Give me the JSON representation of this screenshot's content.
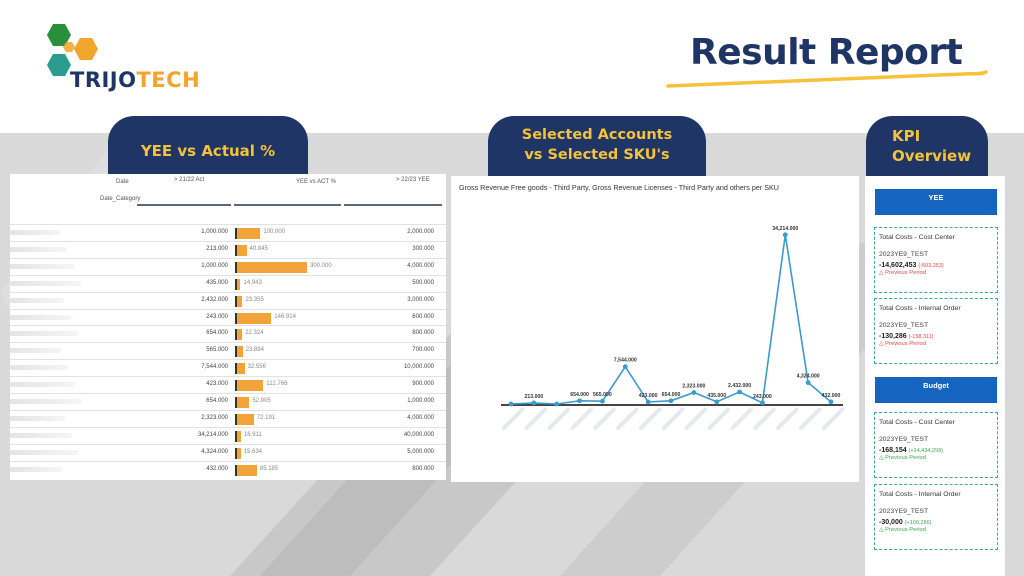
{
  "brand": {
    "name_part1": "TRIJO",
    "name_part2": "TECH",
    "colors": {
      "navy": "#1e3565",
      "orange": "#f2a52c",
      "green": "#2a8f3a",
      "teal": "#2a9d8f"
    }
  },
  "header": {
    "title": "Result Report"
  },
  "tabs": [
    {
      "lines": [
        "YEE vs Actual %"
      ]
    },
    {
      "lines": [
        "Selected Accounts",
        "vs Selected SKU's"
      ]
    },
    {
      "lines": [
        "KPI",
        "Overview"
      ]
    }
  ],
  "table": {
    "headers": {
      "date": "Date",
      "date_category": "Date_Category",
      "act": "> 21/22 Act",
      "yee_vs_act": "YEE vs ACT %",
      "yee": "> 22/23 YEE"
    },
    "rows": [
      {
        "label": "blurred",
        "act": "1,000.000",
        "pct_label": "100.000",
        "pct": 100,
        "yee": "2,000.000"
      },
      {
        "label": "blurred",
        "act": "213.000",
        "pct_label": "40.845",
        "pct": 40.845,
        "yee": "300.000"
      },
      {
        "label": "blurred",
        "act": "1,000.000",
        "pct_label": "300.000",
        "pct": 300,
        "yee": "4,000.000"
      },
      {
        "label": "blurred",
        "act": "435.000",
        "pct_label": "14.943",
        "pct": 14.943,
        "yee": "500.000"
      },
      {
        "label": "blurred",
        "act": "2,432.000",
        "pct_label": "23.355",
        "pct": 23.355,
        "yee": "3,000.000"
      },
      {
        "label": "blurred",
        "act": "243.000",
        "pct_label": "146.914",
        "pct": 146.914,
        "yee": "600.000"
      },
      {
        "label": "blurred",
        "act": "654.000",
        "pct_label": "22.324",
        "pct": 22.324,
        "yee": "800.000"
      },
      {
        "label": "blurred",
        "act": "565.000",
        "pct_label": "23.894",
        "pct": 23.894,
        "yee": "700.000"
      },
      {
        "label": "blurred",
        "act": "7,544.000",
        "pct_label": "32.556",
        "pct": 32.556,
        "yee": "10,000.000"
      },
      {
        "label": "blurred",
        "act": "423.000",
        "pct_label": "112.766",
        "pct": 112.766,
        "yee": "900.000"
      },
      {
        "label": "blurred",
        "act": "654.000",
        "pct_label": "52.905",
        "pct": 52.905,
        "yee": "1,000.000"
      },
      {
        "label": "blurred",
        "act": "2,323.000",
        "pct_label": "72.191",
        "pct": 72.191,
        "yee": "4,000.000"
      },
      {
        "label": "blurred",
        "act": "34,214.000",
        "pct_label": "16.911",
        "pct": 16.911,
        "yee": "40,000.000"
      },
      {
        "label": "blurred",
        "act": "4,324.000",
        "pct_label": "15.634",
        "pct": 15.634,
        "yee": "5,000.000"
      },
      {
        "label": "blurred",
        "act": "432.000",
        "pct_label": "85.185",
        "pct": 85.185,
        "yee": "800.000"
      }
    ]
  },
  "chart_data": {
    "type": "line",
    "title": "Gross Revenue Free goods - Third Party, Gross Revenue Licenses - Third Party and others per SKU",
    "xlabel": "",
    "ylabel": "",
    "color": "#3a9ccc",
    "points": [
      {
        "v": 0,
        "label": ""
      },
      {
        "v": 213,
        "label": "213.000"
      },
      {
        "v": 0,
        "label": ""
      },
      {
        "v": 654,
        "label": "654.000"
      },
      {
        "v": 565,
        "label": "565.000"
      },
      {
        "v": 7544,
        "label": "7,544.000"
      },
      {
        "v": 423,
        "label": "423.000"
      },
      {
        "v": 654,
        "label": "654.000"
      },
      {
        "v": 2323,
        "label": "2,323.000"
      },
      {
        "v": 435,
        "label": "435.000"
      },
      {
        "v": 2432,
        "label": "2,432.000"
      },
      {
        "v": 243,
        "label": "243.000"
      },
      {
        "v": 34214,
        "label": "34,214.000"
      },
      {
        "v": 4324,
        "label": "4,324.000"
      },
      {
        "v": 432,
        "label": "432.000"
      }
    ],
    "ylim": [
      0,
      36000
    ],
    "grid": false,
    "legend": "none"
  },
  "kpi": {
    "sections": [
      {
        "title": "YEE",
        "cards": [
          {
            "title": "Total Costs - Cost Center",
            "subtitle": "2023YE9_TEST",
            "value": "-14,602,453",
            "delta": "(-593,253)",
            "trend": "Previous Period",
            "tone": "neg"
          },
          {
            "title": "Total Costs - Internal Order",
            "subtitle": "2023YE9_TEST",
            "value": "-130,286",
            "delta": "(-158,311)",
            "trend": "Previous Period",
            "tone": "neg"
          }
        ]
      },
      {
        "title": "Budget",
        "cards": [
          {
            "title": "Total Costs - Cost Center",
            "subtitle": "2023YE9_TEST",
            "value": "-168,154",
            "delta": "(+14,434,299)",
            "trend": "Previous Period",
            "tone": "pos"
          },
          {
            "title": "Total Costs - Internal Order",
            "subtitle": "2023YE9_TEST",
            "value": "-30,000",
            "delta": "(+100,286)",
            "trend": "Previous Period",
            "tone": "pos"
          }
        ]
      }
    ]
  }
}
